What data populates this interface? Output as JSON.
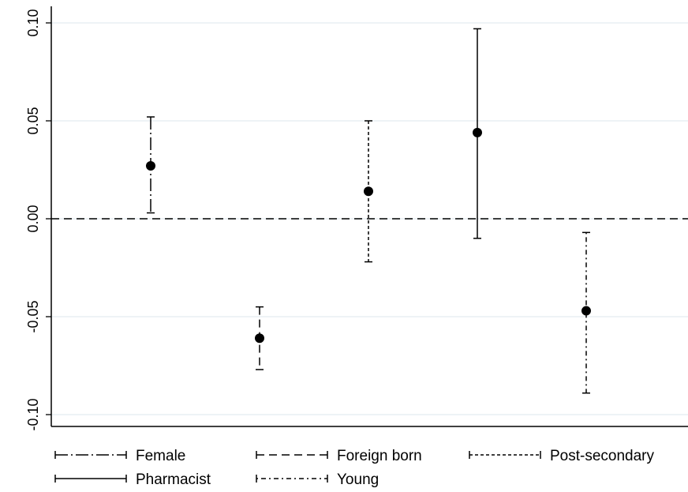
{
  "chart_data": {
    "type": "errorbar",
    "title": "",
    "xlabel": "",
    "ylabel": "",
    "ylim": [
      -0.11,
      0.11
    ],
    "yticks": [
      -0.1,
      -0.05,
      0.0,
      0.05,
      0.1
    ],
    "ytick_labels": [
      "-0.10",
      "-0.05",
      "0.00",
      "0.05",
      "0.10"
    ],
    "grid": true,
    "reference_line": {
      "y": 0.0,
      "style": "dashed"
    },
    "legend_position": "bottom",
    "series": [
      {
        "name": "Female",
        "x": 1,
        "estimate": 0.027,
        "ci_low": 0.003,
        "ci_high": 0.052,
        "dash": "longdash-dot"
      },
      {
        "name": "Foreign born",
        "x": 2,
        "estimate": -0.061,
        "ci_low": -0.077,
        "ci_high": -0.045,
        "dash": "dashed"
      },
      {
        "name": "Post-secondary",
        "x": 3,
        "estimate": 0.014,
        "ci_low": -0.022,
        "ci_high": 0.05,
        "dash": "short-dash"
      },
      {
        "name": "Pharmacist",
        "x": 4,
        "estimate": 0.044,
        "ci_low": -0.01,
        "ci_high": 0.097,
        "dash": "solid"
      },
      {
        "name": "Young",
        "x": 5,
        "estimate": -0.047,
        "ci_low": -0.089,
        "ci_high": -0.007,
        "dash": "dot-dash"
      }
    ],
    "colors": {
      "line": "#000000",
      "grid": "#e8eff4",
      "background": "#ffffff"
    }
  }
}
